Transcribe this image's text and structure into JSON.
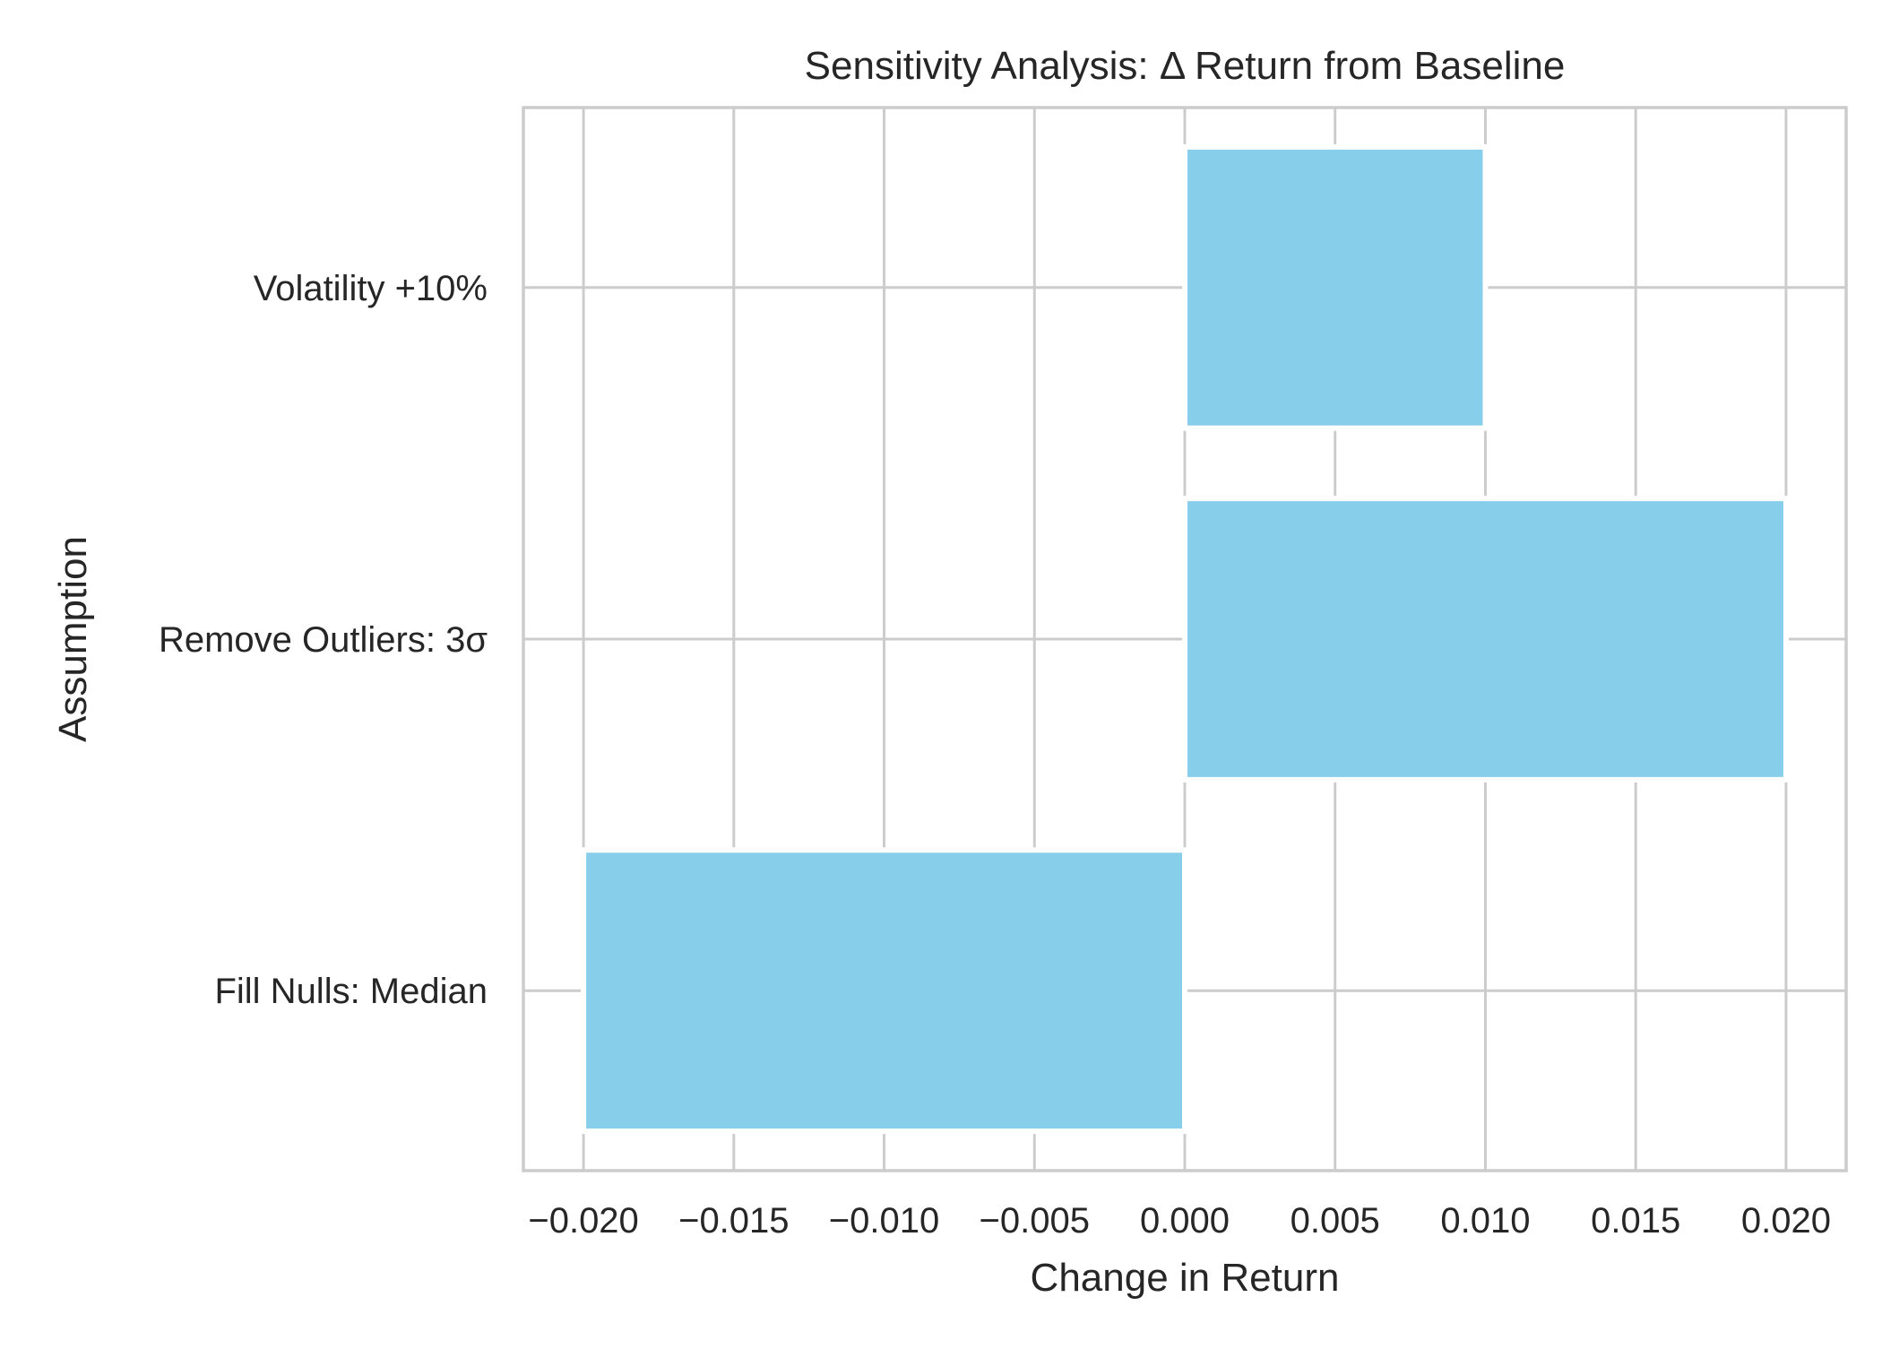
{
  "chart_data": {
    "type": "bar",
    "orientation": "horizontal",
    "title": "Sensitivity Analysis: Δ Return from Baseline",
    "xlabel": "Change in Return",
    "ylabel": "Assumption",
    "categories": [
      "Fill Nulls: Median",
      "Remove Outliers: 3σ",
      "Volatility +10%"
    ],
    "values": [
      -0.02,
      0.02,
      0.01
    ],
    "xlim": [
      -0.022,
      0.022
    ],
    "xticks": [
      -0.02,
      -0.015,
      -0.01,
      -0.005,
      0.0,
      0.005,
      0.01,
      0.015,
      0.02
    ],
    "xtick_labels": [
      "−0.020",
      "−0.015",
      "−0.010",
      "−0.005",
      "0.000",
      "0.005",
      "0.010",
      "0.015",
      "0.020"
    ],
    "grid": true,
    "bar_color": "#87CEEB",
    "grid_color": "#cccccc",
    "frame_color": "#cccccc",
    "text_color": "#262626"
  }
}
